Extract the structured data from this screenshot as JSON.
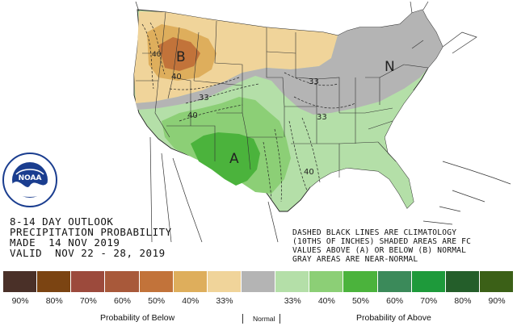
{
  "title_block": {
    "line1": "8-14 DAY OUTLOOK",
    "line2": "PRECIPITATION PROBABILITY",
    "line3": "MADE  14 NOV 2019",
    "line4": "VALID  NOV 22 - 28, 2019"
  },
  "note_block": {
    "line1": "DASHED BLACK LINES ARE CLIMATOLOGY",
    "line2": "(10THS OF INCHES) SHADED AREAS ARE FC",
    "line3": "VALUES ABOVE (A) OR BELOW (B) NORMAL",
    "line4": "GRAY AREAS ARE NEAR-NORMAL"
  },
  "map_labels": {
    "below": "B",
    "near_normal": "N",
    "above": "A",
    "contours": [
      "40",
      "40",
      "33",
      "40",
      "33",
      "33",
      "40"
    ]
  },
  "logo": {
    "text": "NOAA"
  },
  "legend": {
    "colors": [
      "#4a3028",
      "#7b4412",
      "#9c4a3c",
      "#a8593a",
      "#c2733a",
      "#deae5c",
      "#f0d49a",
      "#b4b4b4",
      "#b4dfa8",
      "#8ccf76",
      "#4bb33c",
      "#3b8a5a",
      "#1e9a3b",
      "#245e2a",
      "#3b6017"
    ],
    "percents": [
      "90%",
      "80%",
      "70%",
      "60%",
      "50%",
      "40%",
      "33%",
      "Normal",
      "33%",
      "40%",
      "50%",
      "60%",
      "70%",
      "80%",
      "90%"
    ],
    "label_below": "Probability of Below",
    "label_normal": "Normal",
    "label_above": "Probability of Above"
  }
}
